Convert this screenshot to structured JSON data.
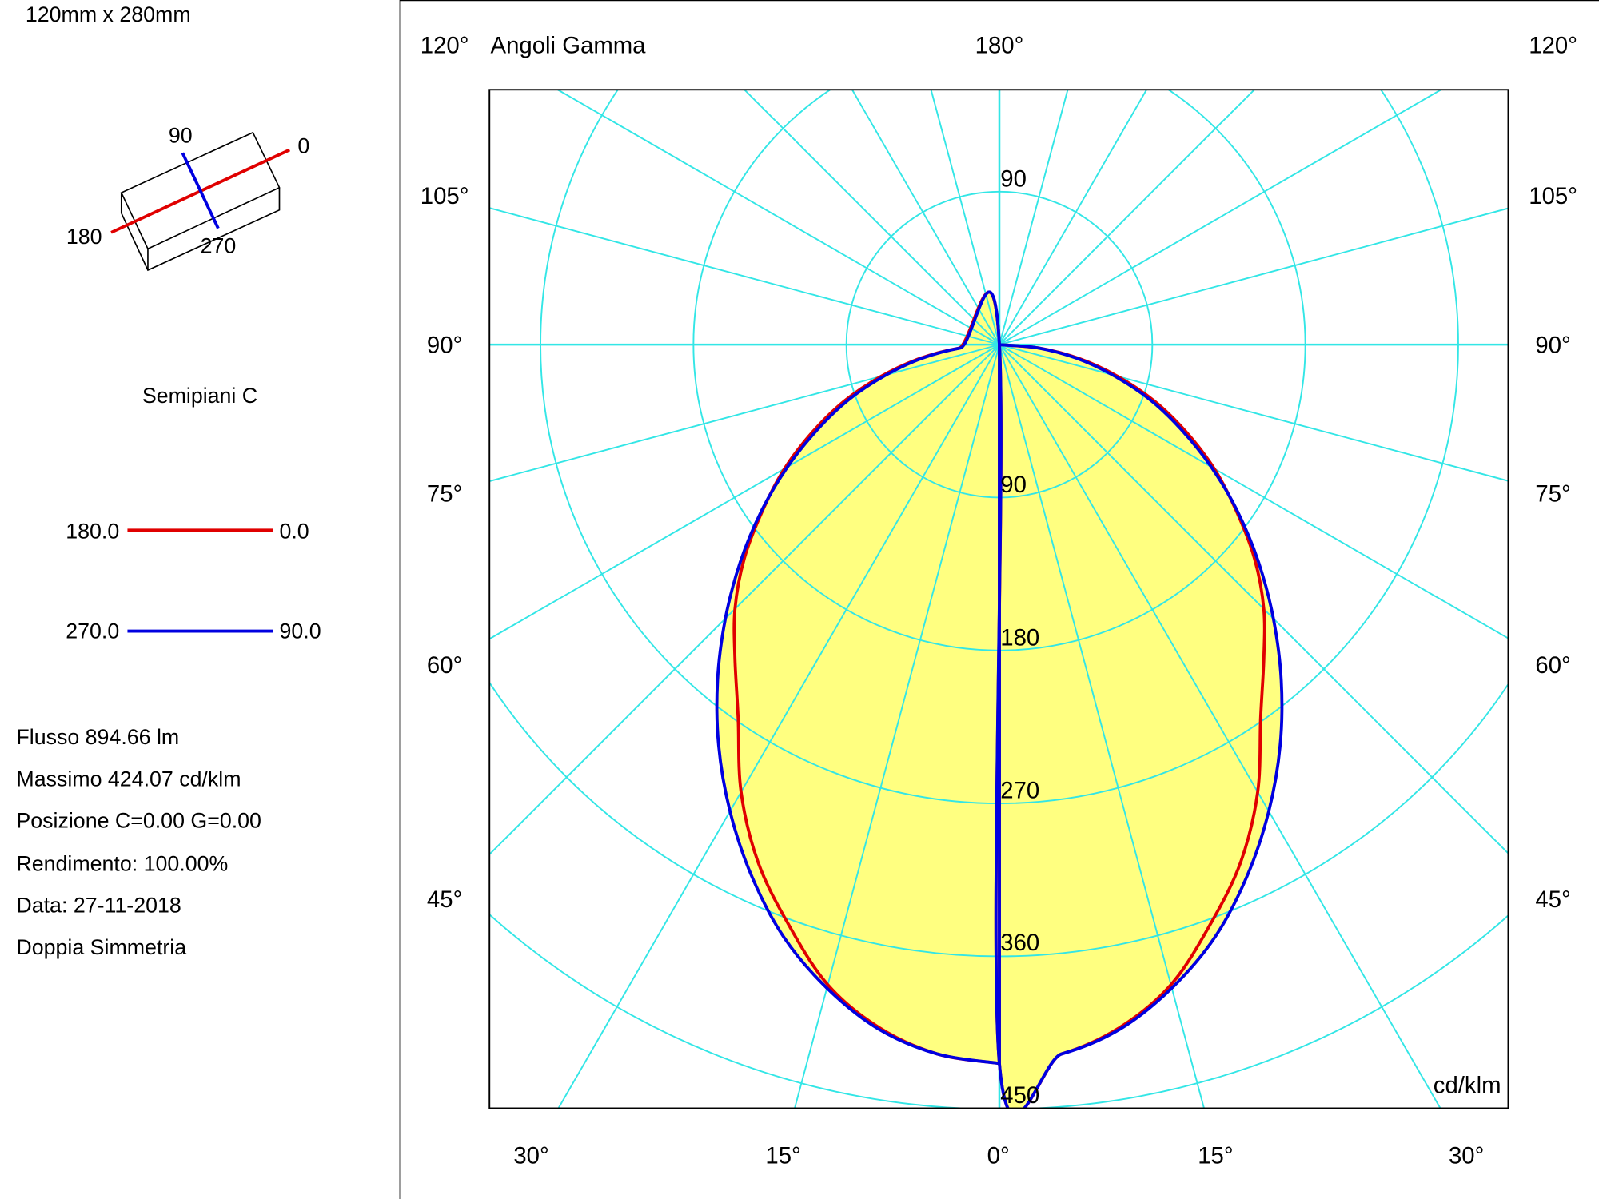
{
  "left_panel": {
    "dimensions": "120mm x 280mm",
    "diagram_labels": {
      "c90": "90",
      "c0": "0",
      "c180": "180",
      "c270": "270"
    },
    "legend_title": "Semipiani C",
    "legend": [
      {
        "left": "180.0",
        "right": "0.0",
        "color": "#e00000"
      },
      {
        "left": "270.0",
        "right": "90.0",
        "color": "#0000e0"
      }
    ],
    "info": [
      "Flusso 894.66  lm",
      "Massimo 424.07  cd/klm",
      "Posizione C=0.00 G=0.00",
      "Rendimento: 100.00%",
      "Data: 27-11-2018",
      "Doppia Simmetria"
    ]
  },
  "chart_data": {
    "type": "line",
    "coordinate_system": "polar",
    "title": "Angoli Gamma",
    "unit": "cd/klm",
    "grid": true,
    "radial_ticks": [
      "90",
      "180",
      "270",
      "360",
      "450"
    ],
    "radial_values": [
      90,
      180,
      270,
      360,
      450
    ],
    "gamma_labels": {
      "top": "180°",
      "sides": [
        "120°",
        "105°",
        "90°",
        "75°",
        "60°",
        "45°"
      ],
      "bottom": [
        "30°",
        "15°",
        "0°",
        "15°",
        "30°"
      ]
    },
    "gamma": [
      0,
      5,
      10,
      15,
      20,
      25,
      30,
      35,
      40,
      45,
      50,
      55,
      60,
      65,
      70,
      75,
      80,
      85,
      90
    ],
    "series": [
      {
        "name": "180.0 - 0.0",
        "color": "#e00000",
        "values": [
          423,
          419,
          408,
          390,
          363,
          336,
          304,
          268,
          242,
          220,
          196,
          170,
          146,
          121,
          97,
          72,
          48,
          24,
          0
        ]
      },
      {
        "name": "270.0 - 90.0",
        "color": "#0000e0",
        "values": [
          423,
          419,
          409,
          392,
          371,
          345,
          317,
          288,
          258,
          228,
          199,
          171,
          144,
          118,
          94,
          69,
          46,
          23,
          0
        ]
      }
    ],
    "fill_color": "#ffff80",
    "grid_color": "#33e6e6"
  }
}
